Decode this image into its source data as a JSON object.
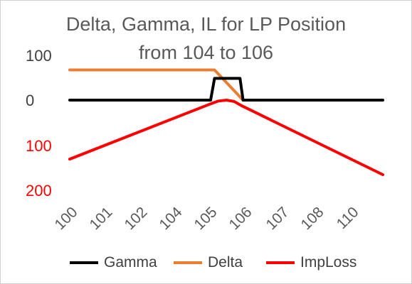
{
  "chart_data": {
    "type": "line",
    "title_line1": "Delta, Gamma, IL for LP Position",
    "title_line2": "from 104 to 106",
    "y_tick_labels": [
      {
        "text": "100",
        "value": 100,
        "color": "#404040"
      },
      {
        "text": "0",
        "value": 0,
        "color": "#404040"
      },
      {
        "text": "100",
        "value": -100,
        "color": "#ff0000"
      },
      {
        "text": "200",
        "value": -200,
        "color": "#ff0000"
      }
    ],
    "x_tick_labels": [
      "100",
      "101",
      "102",
      "104",
      "105",
      "106",
      "107",
      "108",
      "110"
    ],
    "ylim": [
      -200,
      100
    ],
    "grid": false,
    "legend_position": "bottom",
    "series": [
      {
        "name": "Gamma",
        "color": "#000000",
        "x": [
          0,
          2.2,
          2.4,
          2.6,
          2.8,
          3.2,
          3.8,
          4.0,
          4.2,
          4.6,
          4.8,
          5.0,
          5.4,
          5.6,
          6.0,
          7.0,
          8.0
        ],
        "y": [
          0,
          0,
          0,
          0,
          0,
          0,
          0,
          0,
          0,
          0,
          0,
          0,
          0,
          0,
          0,
          0,
          0
        ],
        "segments": [
          {
            "x": [
              0,
              3.6,
              3.7,
              4.0,
              4.35,
              4.43,
              8.0
            ],
            "y": [
              0,
              0,
              49,
              49,
              49,
              0,
              0
            ]
          }
        ]
      },
      {
        "name": "Delta",
        "color": "#ed7d31",
        "segments": [
          {
            "x": [
              0,
              3.7,
              4.43,
              8.0
            ],
            "y": [
              68,
              68,
              0,
              0
            ]
          }
        ]
      },
      {
        "name": "ImpLoss",
        "color": "#ff0000",
        "segments": [
          {
            "x": [
              0,
              3.55,
              3.8,
              4.0,
              4.2,
              4.4,
              8.0
            ],
            "y": [
              -133,
              -10,
              -2,
              0,
              -3,
              -13,
              -168
            ]
          }
        ]
      }
    ]
  },
  "legend": {
    "items": [
      {
        "label": "Gamma",
        "color": "#000000"
      },
      {
        "label": "Delta",
        "color": "#ed7d31"
      },
      {
        "label": "ImpLoss",
        "color": "#ff0000"
      }
    ]
  }
}
